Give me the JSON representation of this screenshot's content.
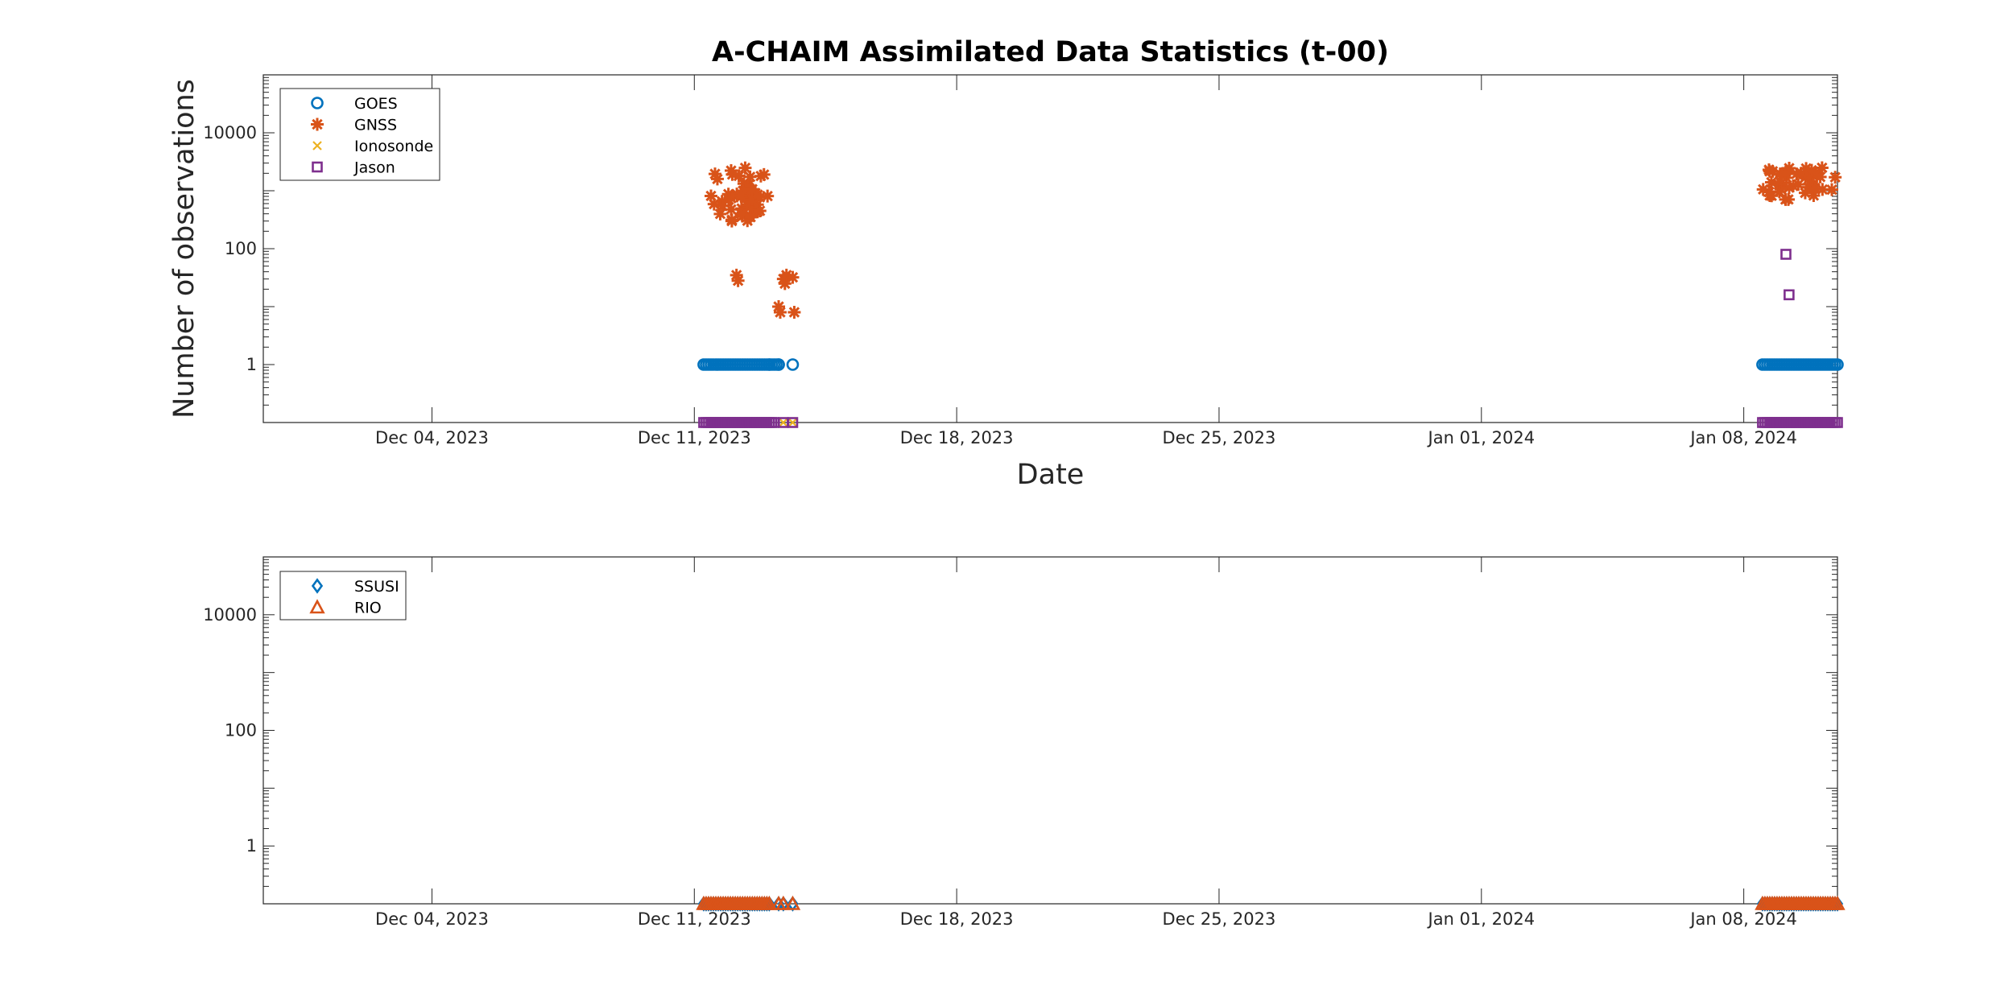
{
  "chart_data": [
    {
      "type": "scatter",
      "title": "A-CHAIM Assimilated Data Statistics (t-00)",
      "xlabel": "Date",
      "ylabel": "Number of observations",
      "yscale": "log",
      "ylim": [
        0.1,
        100000
      ],
      "xlim": [
        "2023-11-29 12:00",
        "2024-01-10 12:00"
      ],
      "x_ticks": [
        "2023-12-04",
        "2023-12-11",
        "2023-12-18",
        "2023-12-25",
        "2024-01-01",
        "2024-01-08"
      ],
      "x_tick_labels": [
        "Dec 04, 2023",
        "Dec 11, 2023",
        "Dec 18, 2023",
        "Dec 25, 2023",
        "Jan 01, 2024",
        "Jan 08, 2024"
      ],
      "y_ticks": [
        1,
        100,
        10000
      ],
      "y_tick_labels": [
        "1",
        "100",
        "10000"
      ],
      "legend_position": "top-left",
      "series": [
        {
          "name": "GOES",
          "marker": "circle",
          "color": "#0072BD",
          "segments": [
            {
              "from": "2023-12-11 06:00",
              "to": "2023-12-13 00:00",
              "value": 1
            },
            {
              "from": "2023-12-13 00:00",
              "to": "2023-12-13 06:00",
              "value": 1
            },
            {
              "from": "2024-01-08 12:00",
              "to": "2024-01-10 12:00",
              "value": 1
            }
          ],
          "points": [
            {
              "x": "2023-12-13 06:00",
              "y": 1
            },
            {
              "x": "2023-12-13 15:00",
              "y": 1
            }
          ]
        },
        {
          "name": "GNSS",
          "marker": "asterisk",
          "color": "#D95319",
          "clusters": [
            {
              "from": "2023-12-11 06:00",
              "to": "2023-12-13 00:00",
              "ymin": 300,
              "ymax": 2500
            },
            {
              "from": "2023-12-12 03:00",
              "to": "2023-12-12 18:00",
              "ymin": 500,
              "ymax": 1200
            },
            {
              "from": "2024-01-08 12:00",
              "to": "2024-01-10 12:00",
              "ymin": 700,
              "ymax": 2500
            }
          ],
          "points": [
            {
              "x": "2023-12-12 00:00",
              "y": 300
            },
            {
              "x": "2023-12-12 06:00",
              "y": 400
            },
            {
              "x": "2023-12-12 12:00",
              "y": 350
            },
            {
              "x": "2023-12-12 18:00",
              "y": 450
            },
            {
              "x": "2023-12-12 03:00",
              "y": 35
            },
            {
              "x": "2023-12-12 04:00",
              "y": 28
            },
            {
              "x": "2023-12-13 06:00",
              "y": 10
            },
            {
              "x": "2023-12-13 07:00",
              "y": 8
            },
            {
              "x": "2023-12-13 09:00",
              "y": 30
            },
            {
              "x": "2023-12-13 10:00",
              "y": 25
            },
            {
              "x": "2023-12-13 11:00",
              "y": 35
            },
            {
              "x": "2023-12-13 15:00",
              "y": 32
            },
            {
              "x": "2023-12-13 16:00",
              "y": 8
            }
          ]
        },
        {
          "name": "Ionosonde",
          "marker": "x",
          "color": "#EDB120",
          "points": [
            {
              "x": "2023-12-11 22:00",
              "y": 0.1
            },
            {
              "x": "2023-12-13 09:00",
              "y": 0.1
            },
            {
              "x": "2023-12-13 15:00",
              "y": 0.1
            },
            {
              "x": "2024-01-08 18:00",
              "y": 0.1
            }
          ]
        },
        {
          "name": "Jason",
          "marker": "square",
          "color": "#7E2F8E",
          "segments": [
            {
              "from": "2023-12-11 06:00",
              "to": "2023-12-13 03:00",
              "value": 0.1
            },
            {
              "from": "2024-01-08 12:00",
              "to": "2024-01-10 12:00",
              "value": 0.1
            }
          ],
          "points": [
            {
              "x": "2023-12-13 09:00",
              "y": 0.1
            },
            {
              "x": "2023-12-13 15:00",
              "y": 0.1
            },
            {
              "x": "2024-01-09 03:00",
              "y": 80
            },
            {
              "x": "2024-01-09 05:00",
              "y": 16
            }
          ]
        }
      ]
    },
    {
      "type": "scatter",
      "title": "",
      "xlabel": "",
      "ylabel": "",
      "yscale": "log",
      "ylim": [
        0.1,
        100000
      ],
      "xlim": [
        "2023-11-29 12:00",
        "2024-01-10 12:00"
      ],
      "x_ticks": [
        "2023-12-04",
        "2023-12-11",
        "2023-12-18",
        "2023-12-25",
        "2024-01-01",
        "2024-01-08"
      ],
      "x_tick_labels": [
        "Dec 04, 2023",
        "Dec 11, 2023",
        "Dec 18, 2023",
        "Dec 25, 2023",
        "Jan 01, 2024",
        "Jan 08, 2024"
      ],
      "y_ticks": [
        1,
        100,
        10000
      ],
      "y_tick_labels": [
        "1",
        "100",
        "10000"
      ],
      "legend_position": "top-left",
      "series": [
        {
          "name": "SSUSI",
          "marker": "diamond",
          "color": "#0072BD",
          "segments": [
            {
              "from": "2023-12-11 06:00",
              "to": "2023-12-13 00:00",
              "value": 0.1
            },
            {
              "from": "2024-01-08 12:00",
              "to": "2024-01-10 12:00",
              "value": 0.1
            }
          ],
          "points": [
            {
              "x": "2023-12-13 06:00",
              "y": 0.1
            },
            {
              "x": "2023-12-13 09:00",
              "y": 0.1
            },
            {
              "x": "2023-12-13 15:00",
              "y": 0.1
            }
          ]
        },
        {
          "name": "RIO",
          "marker": "triangle",
          "color": "#D95319",
          "segments": [
            {
              "from": "2023-12-11 06:00",
              "to": "2023-12-13 00:00",
              "value": 0.1
            },
            {
              "from": "2024-01-08 12:00",
              "to": "2024-01-10 12:00",
              "value": 0.1
            }
          ],
          "points": [
            {
              "x": "2023-12-13 06:00",
              "y": 0.1
            },
            {
              "x": "2023-12-13 09:00",
              "y": 0.1
            },
            {
              "x": "2023-12-13 15:00",
              "y": 0.1
            }
          ]
        }
      ]
    }
  ]
}
